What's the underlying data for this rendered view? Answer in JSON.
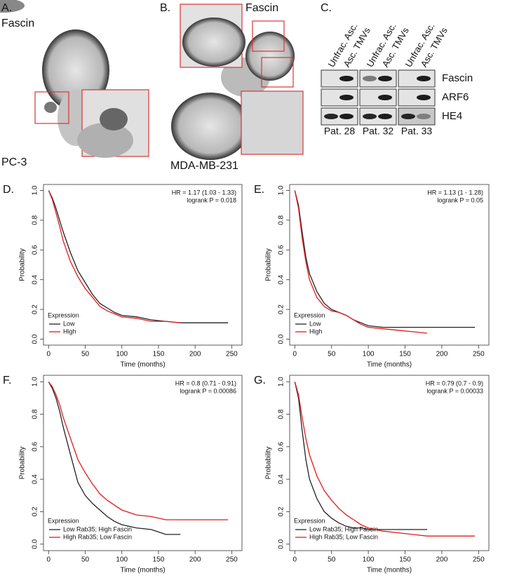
{
  "image_panels": [
    {
      "letter": "A.",
      "labels": [
        "Fascin",
        "PC-3"
      ]
    },
    {
      "letter": "B.",
      "labels": [
        "Fascin",
        "MDA-MB-231"
      ]
    }
  ],
  "blot": {
    "letter": "C.",
    "lanes": [
      "Unfrac. Asc.",
      "Asc. TMVs"
    ],
    "rows": [
      "Fascin",
      "ARF6",
      "HE4"
    ],
    "patients": [
      "Pat. 28",
      "Pat. 32",
      "Pat. 33"
    ]
  },
  "chart_data": [
    {
      "type": "line",
      "letter": "D.",
      "annotations": [
        "HR = 1.17 (1.03 - 1.33)",
        "logrank P = 0.018"
      ],
      "x_label": "Time (months)",
      "y_label": "Probability",
      "legend_title": "Expression",
      "x": [
        0,
        5,
        10,
        15,
        20,
        30,
        40,
        50,
        60,
        70,
        80,
        90,
        100,
        120,
        140,
        160,
        180,
        200,
        220,
        245
      ],
      "series": [
        {
          "name": "Low",
          "color": "#222222",
          "values": [
            1,
            0.95,
            0.88,
            0.8,
            0.72,
            0.58,
            0.46,
            0.38,
            0.3,
            0.24,
            0.21,
            0.18,
            0.16,
            0.15,
            0.13,
            0.12,
            0.11,
            0.11,
            0.11,
            0.11
          ]
        },
        {
          "name": "High",
          "color": "#e41a1c",
          "values": [
            1,
            0.94,
            0.85,
            0.76,
            0.66,
            0.52,
            0.42,
            0.34,
            0.28,
            0.22,
            0.19,
            0.17,
            0.15,
            0.14,
            0.12,
            0.12,
            0.11,
            null,
            null,
            null
          ]
        }
      ],
      "xlim": [
        -7,
        264
      ],
      "ylim": [
        -0.04,
        1.04
      ],
      "xticks": [
        0,
        50,
        100,
        150,
        200,
        250
      ],
      "yticks": [
        {
          "value": 0,
          "label": "0.0"
        },
        0.2,
        0.4,
        0.6,
        0.8,
        {
          "value": 1,
          "label": "1.0"
        }
      ]
    },
    {
      "type": "line",
      "letter": "E.",
      "annotations": [
        "HR = 1.13 (1 - 1.28)",
        "logrank P = 0.05"
      ],
      "x_label": "Time (months)",
      "y_label": "Probability",
      "legend_title": "Expression",
      "x": [
        0,
        5,
        10,
        15,
        20,
        30,
        40,
        50,
        60,
        70,
        80,
        90,
        100,
        120,
        140,
        160,
        180,
        200,
        220,
        245
      ],
      "series": [
        {
          "name": "Low",
          "color": "#222222",
          "values": [
            1,
            0.9,
            0.72,
            0.55,
            0.44,
            0.32,
            0.24,
            0.2,
            0.18,
            0.16,
            0.13,
            0.11,
            0.09,
            0.08,
            0.08,
            0.08,
            0.08,
            0.08,
            0.08,
            0.08
          ]
        },
        {
          "name": "High",
          "color": "#e41a1c",
          "values": [
            1,
            0.88,
            0.68,
            0.52,
            0.4,
            0.28,
            0.22,
            0.19,
            0.18,
            0.16,
            0.13,
            0.1,
            0.08,
            0.07,
            0.06,
            0.05,
            0.04,
            null,
            null,
            null
          ]
        }
      ],
      "xlim": [
        -7,
        264
      ],
      "ylim": [
        -0.04,
        1.04
      ],
      "xticks": [
        0,
        50,
        100,
        150,
        200,
        250
      ],
      "yticks": [
        {
          "value": 0,
          "label": "0.0"
        },
        0.2,
        0.4,
        0.6,
        0.8,
        {
          "value": 1,
          "label": "1.0"
        }
      ]
    },
    {
      "type": "line",
      "letter": "F.",
      "annotations": [
        "HR = 0.8 (0.71 - 0.91)",
        "logrank P = 0.00086"
      ],
      "x_label": "Time (months)",
      "y_label": "Probability",
      "legend_title": "Expression",
      "x": [
        0,
        5,
        10,
        15,
        20,
        30,
        40,
        50,
        60,
        70,
        80,
        90,
        100,
        120,
        140,
        160,
        180,
        200,
        220,
        245
      ],
      "series": [
        {
          "name": "Low Rab35; High Fascin",
          "color": "#222222",
          "values": [
            1,
            0.96,
            0.9,
            0.82,
            0.72,
            0.55,
            0.38,
            0.3,
            0.25,
            0.21,
            0.17,
            0.14,
            0.12,
            0.1,
            0.09,
            0.06,
            0.06,
            null,
            null,
            null
          ]
        },
        {
          "name": "High Rab35; Low Fascin",
          "color": "#e41a1c",
          "values": [
            1,
            0.97,
            0.92,
            0.86,
            0.78,
            0.65,
            0.52,
            0.44,
            0.37,
            0.31,
            0.27,
            0.24,
            0.21,
            0.18,
            0.17,
            0.15,
            0.15,
            0.15,
            0.15,
            0.15
          ]
        }
      ],
      "xlim": [
        -7,
        264
      ],
      "ylim": [
        -0.04,
        1.04
      ],
      "xticks": [
        0,
        50,
        100,
        150,
        200,
        250
      ],
      "yticks": [
        {
          "value": 0,
          "label": "0.0"
        },
        0.2,
        0.4,
        0.6,
        0.8,
        {
          "value": 1,
          "label": "1.0"
        }
      ]
    },
    {
      "type": "line",
      "letter": "G.",
      "annotations": [
        "HR = 0.79 (0.7 - 0.9)",
        "logrank P = 0.00033"
      ],
      "x_label": "Time (months)",
      "y_label": "Probability",
      "legend_title": "Expression",
      "x": [
        0,
        5,
        10,
        15,
        20,
        30,
        40,
        50,
        60,
        70,
        80,
        90,
        100,
        120,
        140,
        160,
        180,
        200,
        220,
        245
      ],
      "series": [
        {
          "name": "Low Rab35; High Fascin",
          "color": "#222222",
          "values": [
            1,
            0.9,
            0.7,
            0.52,
            0.4,
            0.28,
            0.2,
            0.16,
            0.13,
            0.11,
            0.1,
            0.1,
            0.09,
            0.09,
            0.09,
            0.09,
            0.09,
            null,
            null,
            null
          ]
        },
        {
          "name": "High Rab35; Low Fascin",
          "color": "#e41a1c",
          "values": [
            1,
            0.92,
            0.78,
            0.65,
            0.55,
            0.42,
            0.33,
            0.27,
            0.22,
            0.18,
            0.15,
            0.12,
            0.1,
            0.08,
            0.07,
            0.06,
            0.05,
            0.05,
            0.05,
            0.05
          ]
        }
      ],
      "xlim": [
        -7,
        264
      ],
      "ylim": [
        -0.04,
        1.04
      ],
      "xticks": [
        0,
        50,
        100,
        150,
        200,
        250
      ],
      "yticks": [
        {
          "value": 0,
          "label": "0.0"
        },
        0.2,
        0.4,
        0.6,
        0.8,
        {
          "value": 1,
          "label": "1.0"
        }
      ]
    }
  ]
}
